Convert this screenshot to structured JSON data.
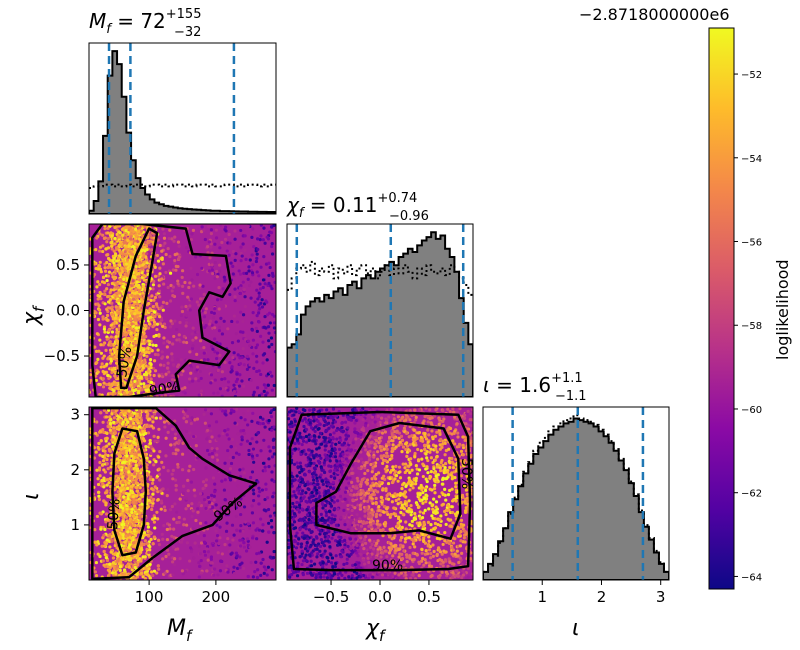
{
  "figure": {
    "offset_label": "−2.8718000000e6",
    "colorbar_label": "loglikelihood"
  },
  "panel_titles": {
    "mf": {
      "base": "M",
      "sub": "f",
      "rest": " = 72",
      "sup": "+155",
      "low": "−32"
    },
    "chif": {
      "base": "χ",
      "sub": "f",
      "rest": " = 0.11",
      "sup": "+0.74",
      "low": "−0.96"
    },
    "iota": {
      "base": "ι",
      "sub": "",
      "rest": " = 1.6",
      "sup": "+1.1",
      "low": "−1.1"
    }
  },
  "axis_labels": {
    "mf": {
      "base": "M",
      "sub": "f"
    },
    "chif": {
      "base": "χ",
      "sub": "f"
    },
    "iota": {
      "base": "ι",
      "sub": ""
    }
  },
  "contour_labels": {
    "inner": "50%",
    "outer": "90%"
  },
  "chart_data": {
    "type": "corner",
    "parameters": [
      "M_f",
      "chi_f",
      "iota"
    ],
    "ranges": {
      "mf": [
        10,
        290
      ],
      "chif": [
        -0.95,
        0.95
      ],
      "iota": [
        0.0,
        3.14
      ]
    },
    "ticks": {
      "mf": {
        "values": [
          100,
          200
        ],
        "labels": [
          "100",
          "200"
        ]
      },
      "chif": {
        "values": [
          -0.5,
          0.0,
          0.5
        ],
        "labels": [
          "−0.5",
          "0.0",
          "0.5"
        ]
      },
      "chif_y": {
        "values": [
          -0.5,
          0.0,
          0.5
        ],
        "labels": [
          "−0.5",
          "0.0",
          "0.5"
        ]
      },
      "iota": {
        "values": [
          1,
          2,
          3
        ],
        "labels": [
          "1",
          "2",
          "3"
        ]
      }
    },
    "quantiles": {
      "mf": [
        40,
        72,
        227
      ],
      "chif": [
        -0.85,
        0.11,
        0.85
      ],
      "iota": [
        0.5,
        1.6,
        2.7
      ]
    },
    "marginals": {
      "mf": {
        "posterior": [
          0.02,
          0.08,
          0.2,
          0.48,
          0.85,
          1.0,
          0.92,
          0.72,
          0.5,
          0.33,
          0.22,
          0.16,
          0.12,
          0.09,
          0.07,
          0.06,
          0.05,
          0.045,
          0.04,
          0.035,
          0.032,
          0.03,
          0.028,
          0.026,
          0.024,
          0.022,
          0.02,
          0.02,
          0.018,
          0.018,
          0.017,
          0.016,
          0.015,
          0.015,
          0.014,
          0.014,
          0.013,
          0.013,
          0.012,
          0.012
        ],
        "prior": [
          0.16,
          0.17,
          0.17,
          0.18,
          0.18,
          0.17,
          0.18,
          0.17,
          0.18,
          0.17,
          0.18,
          0.18,
          0.17,
          0.18,
          0.18,
          0.17,
          0.18,
          0.17,
          0.18,
          0.18,
          0.17,
          0.18,
          0.17,
          0.18,
          0.18,
          0.17,
          0.18,
          0.17,
          0.17,
          0.18,
          0.18,
          0.17,
          0.18,
          0.17,
          0.18,
          0.18,
          0.17,
          0.18,
          0.17,
          0.18
        ]
      },
      "chif": {
        "posterior": [
          0.3,
          0.32,
          0.38,
          0.5,
          0.55,
          0.58,
          0.6,
          0.58,
          0.62,
          0.6,
          0.64,
          0.66,
          0.62,
          0.68,
          0.7,
          0.66,
          0.72,
          0.74,
          0.72,
          0.76,
          0.78,
          0.8,
          0.82,
          0.8,
          0.85,
          0.87,
          0.9,
          0.88,
          0.92,
          0.95,
          0.97,
          1.0,
          0.96,
          0.98,
          0.9,
          0.85,
          0.76,
          0.6,
          0.45,
          0.32
        ],
        "prior": [
          0.65,
          0.72,
          0.78,
          0.8,
          0.76,
          0.82,
          0.74,
          0.78,
          0.76,
          0.8,
          0.72,
          0.78,
          0.75,
          0.8,
          0.74,
          0.78,
          0.8,
          0.75,
          0.78,
          0.72,
          0.76,
          0.8,
          0.74,
          0.78,
          0.75,
          0.8,
          0.76,
          0.72,
          0.78,
          0.74,
          0.8,
          0.76,
          0.75,
          0.78,
          0.74,
          0.8,
          0.76,
          0.72,
          0.68,
          0.62
        ]
      },
      "iota": {
        "posterior": [
          0.05,
          0.1,
          0.16,
          0.24,
          0.32,
          0.42,
          0.5,
          0.58,
          0.66,
          0.72,
          0.78,
          0.82,
          0.86,
          0.9,
          0.93,
          0.95,
          0.97,
          0.98,
          1.0,
          0.99,
          0.98,
          0.97,
          0.95,
          0.92,
          0.89,
          0.85,
          0.8,
          0.74,
          0.68,
          0.6,
          0.52,
          0.42,
          0.33,
          0.25,
          0.17,
          0.1,
          0.05
        ],
        "prior": [
          0.05,
          0.09,
          0.15,
          0.23,
          0.32,
          0.41,
          0.51,
          0.59,
          0.67,
          0.73,
          0.8,
          0.85,
          0.88,
          0.92,
          0.95,
          0.97,
          0.99,
          1.0,
          1.02,
          1.0,
          0.99,
          0.98,
          0.96,
          0.93,
          0.9,
          0.86,
          0.81,
          0.75,
          0.69,
          0.61,
          0.53,
          0.43,
          0.34,
          0.26,
          0.18,
          0.11,
          0.05
        ]
      }
    },
    "contours": {
      "mf_chif": {
        "inner": [
          [
            66,
            -0.85
          ],
          [
            82,
            -0.5
          ],
          [
            92,
            0.0
          ],
          [
            104,
            0.5
          ],
          [
            112,
            0.85
          ],
          [
            100,
            0.9
          ],
          [
            80,
            0.6
          ],
          [
            62,
            0.1
          ],
          [
            55,
            -0.5
          ],
          [
            58,
            -0.85
          ]
        ],
        "outer": [
          [
            20,
            -0.95
          ],
          [
            70,
            -0.95
          ],
          [
            120,
            -0.9
          ],
          [
            145,
            -0.88
          ],
          [
            140,
            -0.7
          ],
          [
            160,
            -0.55
          ],
          [
            205,
            -0.6
          ],
          [
            220,
            -0.45
          ],
          [
            180,
            -0.3
          ],
          [
            175,
            0.0
          ],
          [
            190,
            0.2
          ],
          [
            210,
            0.15
          ],
          [
            222,
            0.3
          ],
          [
            215,
            0.6
          ],
          [
            165,
            0.62
          ],
          [
            155,
            0.9
          ],
          [
            90,
            0.95
          ],
          [
            30,
            0.95
          ],
          [
            15,
            0.8
          ],
          [
            15,
            -0.6
          ]
        ]
      },
      "mf_iota": {
        "inner": [
          [
            60,
            0.45
          ],
          [
            80,
            0.5
          ],
          [
            92,
            1.0
          ],
          [
            95,
            1.6
          ],
          [
            92,
            2.2
          ],
          [
            82,
            2.7
          ],
          [
            60,
            2.75
          ],
          [
            48,
            2.3
          ],
          [
            45,
            1.6
          ],
          [
            48,
            0.9
          ]
        ],
        "outer": [
          [
            15,
            0.02
          ],
          [
            70,
            0.05
          ],
          [
            105,
            0.4
          ],
          [
            150,
            0.8
          ],
          [
            195,
            1.0
          ],
          [
            225,
            1.4
          ],
          [
            260,
            1.75
          ],
          [
            220,
            1.9
          ],
          [
            180,
            2.2
          ],
          [
            160,
            2.4
          ],
          [
            140,
            2.8
          ],
          [
            110,
            3.12
          ],
          [
            15,
            3.12
          ]
        ]
      },
      "chif_iota": {
        "inner": [
          [
            -0.65,
            1.0
          ],
          [
            -0.3,
            0.85
          ],
          [
            0.1,
            0.85
          ],
          [
            0.4,
            0.9
          ],
          [
            0.72,
            0.75
          ],
          [
            0.82,
            1.2
          ],
          [
            0.8,
            2.2
          ],
          [
            0.65,
            2.75
          ],
          [
            0.2,
            2.85
          ],
          [
            -0.1,
            2.7
          ],
          [
            -0.3,
            2.1
          ],
          [
            -0.45,
            1.6
          ],
          [
            -0.65,
            1.4
          ]
        ],
        "outer": [
          [
            -0.88,
            0.2
          ],
          [
            -0.5,
            0.18
          ],
          [
            0.2,
            0.18
          ],
          [
            0.7,
            0.2
          ],
          [
            0.9,
            0.25
          ],
          [
            0.92,
            1.4
          ],
          [
            0.9,
            2.6
          ],
          [
            0.8,
            3.0
          ],
          [
            0.0,
            3.05
          ],
          [
            -0.8,
            3.0
          ],
          [
            -0.92,
            2.4
          ],
          [
            -0.92,
            1.0
          ]
        ]
      }
    },
    "colorbar": {
      "range": [
        -64.3,
        -50.9
      ],
      "ticks": [
        -52,
        -54,
        -56,
        -58,
        -60,
        -62,
        -64
      ],
      "labels": [
        "−52",
        "−54",
        "−56",
        "−58",
        "−60",
        "−62",
        "−64"
      ],
      "colors": [
        "#0d0887",
        "#5302a3",
        "#8b0aa5",
        "#b83289",
        "#db5c68",
        "#f48849",
        "#febc2a",
        "#f0f921"
      ]
    },
    "colors": {
      "hist_fill": "#808080",
      "quantile": "#1f77b4",
      "contour": "#000000"
    }
  }
}
